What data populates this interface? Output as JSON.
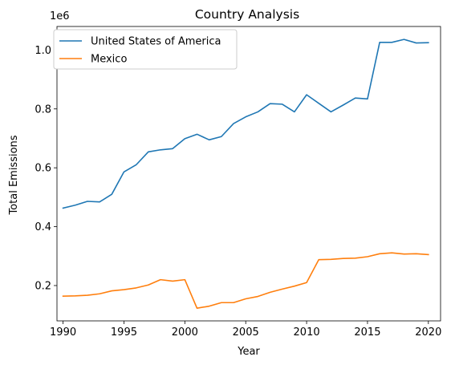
{
  "chart_data": {
    "type": "line",
    "title": "Country Analysis",
    "xlabel": "Year",
    "ylabel": "Total Emissions",
    "y_offset_label": "1e6",
    "xlim": [
      1989.5,
      2021.0
    ],
    "ylim": [
      0.08,
      1.08
    ],
    "x_ticks": [
      1990,
      1995,
      2000,
      2005,
      2010,
      2015,
      2020
    ],
    "y_ticks": [
      0.2,
      0.4,
      0.6,
      0.8,
      1.0
    ],
    "y_tick_labels": [
      "0.2",
      "0.4",
      "0.6",
      "0.8",
      "1.0"
    ],
    "grid": false,
    "legend_position": "top-left",
    "x": [
      1990,
      1991,
      1992,
      1993,
      1994,
      1995,
      1996,
      1997,
      1998,
      1999,
      2000,
      2001,
      2002,
      2003,
      2004,
      2005,
      2006,
      2007,
      2008,
      2009,
      2010,
      2011,
      2012,
      2013,
      2014,
      2015,
      2016,
      2017,
      2018,
      2019,
      2020
    ],
    "series": [
      {
        "name": "United States of America",
        "color": "#1f77b4",
        "values": [
          0.463,
          0.473,
          0.486,
          0.484,
          0.51,
          0.586,
          0.61,
          0.654,
          0.661,
          0.665,
          0.699,
          0.714,
          0.695,
          0.706,
          0.75,
          0.773,
          0.79,
          0.818,
          0.816,
          0.79,
          0.848,
          0.819,
          0.79,
          0.813,
          0.837,
          0.834,
          1.026,
          1.026,
          1.036,
          1.024,
          1.025
        ]
      },
      {
        "name": "Mexico",
        "color": "#ff7f0e",
        "values": [
          0.164,
          0.165,
          0.167,
          0.172,
          0.182,
          0.186,
          0.192,
          0.202,
          0.22,
          0.215,
          0.22,
          0.123,
          0.13,
          0.142,
          0.142,
          0.155,
          0.163,
          0.177,
          0.188,
          0.198,
          0.21,
          0.288,
          0.289,
          0.292,
          0.293,
          0.298,
          0.308,
          0.311,
          0.307,
          0.308,
          0.305
        ]
      }
    ]
  }
}
